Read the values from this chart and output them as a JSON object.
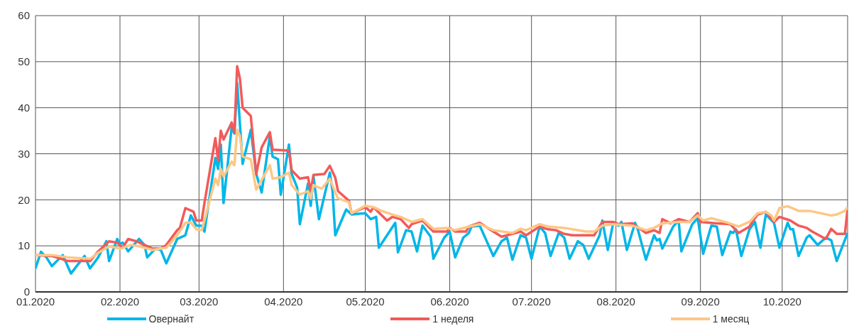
{
  "chart_data": {
    "type": "line",
    "xlim": [
      "2020-01-01",
      "2020-10-25"
    ],
    "ylim": [
      0,
      60
    ],
    "yticks": [
      0,
      10,
      20,
      30,
      40,
      50,
      60
    ],
    "xticks": [
      {
        "value": "2020-01-01",
        "label": "01.2020"
      },
      {
        "value": "2020-02-01",
        "label": "02.2020"
      },
      {
        "value": "2020-03-01",
        "label": "03.2020"
      },
      {
        "value": "2020-04-01",
        "label": "04.2020"
      },
      {
        "value": "2020-05-01",
        "label": "05.2020"
      },
      {
        "value": "2020-06-01",
        "label": "06.2020"
      },
      {
        "value": "2020-07-01",
        "label": "07.2020"
      },
      {
        "value": "2020-08-01",
        "label": "08.2020"
      },
      {
        "value": "2020-09-01",
        "label": "09.2020"
      },
      {
        "value": "2020-10-01",
        "label": "10.2020"
      }
    ],
    "grid": true,
    "legend": "bottom",
    "marker": "none",
    "line_style": "solid",
    "series": [
      {
        "name": "Овернайт",
        "color": "#00b6e8",
        "x": [
          "2020-01-01",
          "2020-01-03",
          "2020-01-05",
          "2020-01-07",
          "2020-01-11",
          "2020-01-14",
          "2020-01-19",
          "2020-01-21",
          "2020-01-24",
          "2020-01-27",
          "2020-01-28",
          "2020-01-31",
          "2020-02-01",
          "2020-02-02",
          "2020-02-04",
          "2020-02-08",
          "2020-02-10",
          "2020-02-11",
          "2020-02-14",
          "2020-02-16",
          "2020-02-18",
          "2020-02-22",
          "2020-02-25",
          "2020-02-27",
          "2020-02-29",
          "2020-03-02",
          "2020-03-03",
          "2020-03-07",
          "2020-03-08",
          "2020-03-09",
          "2020-03-10",
          "2020-03-13",
          "2020-03-14",
          "2020-03-15",
          "2020-03-17",
          "2020-03-20",
          "2020-03-22",
          "2020-03-24",
          "2020-03-27",
          "2020-03-28",
          "2020-03-30",
          "2020-03-31",
          "2020-04-03",
          "2020-04-04",
          "2020-04-06",
          "2020-04-07",
          "2020-04-10",
          "2020-04-11",
          "2020-04-12",
          "2020-04-14",
          "2020-04-18",
          "2020-04-19",
          "2020-04-20",
          "2020-04-24",
          "2020-04-26",
          "2020-05-01",
          "2020-05-03",
          "2020-05-05",
          "2020-05-06",
          "2020-05-12",
          "2020-05-13",
          "2020-05-16",
          "2020-05-18",
          "2020-05-20",
          "2020-05-22",
          "2020-05-25",
          "2020-05-26",
          "2020-05-30",
          "2020-06-01",
          "2020-06-03",
          "2020-06-06",
          "2020-06-08",
          "2020-06-09",
          "2020-06-12",
          "2020-06-17",
          "2020-06-20",
          "2020-06-22",
          "2020-06-24",
          "2020-06-27",
          "2020-06-29",
          "2020-07-01",
          "2020-07-04",
          "2020-07-06",
          "2020-07-08",
          "2020-07-11",
          "2020-07-13",
          "2020-07-15",
          "2020-07-18",
          "2020-07-20",
          "2020-07-22",
          "2020-07-26",
          "2020-07-27",
          "2020-07-29",
          "2020-07-31",
          "2020-08-02",
          "2020-08-03",
          "2020-08-05",
          "2020-08-08",
          "2020-08-09",
          "2020-08-12",
          "2020-08-15",
          "2020-08-16",
          "2020-08-17",
          "2020-08-18",
          "2020-08-22",
          "2020-08-24",
          "2020-08-25",
          "2020-08-29",
          "2020-08-31",
          "2020-09-02",
          "2020-09-05",
          "2020-09-07",
          "2020-09-09",
          "2020-09-12",
          "2020-09-13",
          "2020-09-14",
          "2020-09-16",
          "2020-09-19",
          "2020-09-21",
          "2020-09-23",
          "2020-09-25",
          "2020-09-28",
          "2020-09-30",
          "2020-10-03",
          "2020-10-04",
          "2020-10-05",
          "2020-10-07",
          "2020-10-10",
          "2020-10-11",
          "2020-10-14",
          "2020-10-17",
          "2020-10-19",
          "2020-10-21",
          "2020-10-25"
        ],
        "values": [
          5.1,
          8.7,
          7.5,
          5.6,
          8,
          4,
          7.8,
          5.1,
          7.5,
          11,
          6.7,
          11.5,
          10.4,
          10.7,
          8.8,
          11.5,
          10.2,
          7.5,
          9.4,
          9.1,
          6.2,
          11.5,
          12.3,
          16.6,
          14.4,
          14.4,
          13.1,
          29.1,
          26.7,
          32,
          19.3,
          35.8,
          34.4,
          45.4,
          27.8,
          35.2,
          25.6,
          21.6,
          33.9,
          29.4,
          28.8,
          21.1,
          32,
          25.6,
          22.7,
          14.7,
          23.5,
          18.7,
          25.1,
          15.8,
          25.9,
          21.9,
          12.3,
          17.9,
          16.8,
          17.1,
          15.8,
          16.3,
          9.6,
          15,
          8.6,
          13.4,
          13.1,
          8.8,
          14.4,
          12,
          7.2,
          11.8,
          13.1,
          7.5,
          11.8,
          12.8,
          14.2,
          14.4,
          7.8,
          11,
          11.8,
          7,
          12.3,
          11.8,
          7.2,
          14.2,
          12.8,
          7.8,
          12.8,
          11.8,
          7.2,
          11,
          10.2,
          7.2,
          12.3,
          15.5,
          9.1,
          15,
          14.4,
          15.2,
          9.1,
          15,
          13.6,
          7,
          12.3,
          11.2,
          11.5,
          9.4,
          14.2,
          15.5,
          8.8,
          14.7,
          16,
          8.3,
          14.4,
          14.2,
          8,
          13.1,
          12.8,
          13.6,
          7.8,
          13.6,
          15.2,
          9.6,
          16.8,
          15,
          9.6,
          15,
          13.6,
          13.6,
          7.8,
          11.8,
          12.3,
          10.2,
          11.8,
          11.2,
          6.7,
          12.8
        ]
      },
      {
        "name": "1 неделя",
        "color": "#f25a5a",
        "x": [
          "2020-01-01",
          "2020-01-07",
          "2020-01-13",
          "2020-01-21",
          "2020-01-24",
          "2020-01-28",
          "2020-01-31",
          "2020-02-02",
          "2020-02-04",
          "2020-02-07",
          "2020-02-10",
          "2020-02-13",
          "2020-02-16",
          "2020-02-18",
          "2020-02-22",
          "2020-02-23",
          "2020-02-25",
          "2020-02-28",
          "2020-02-29",
          "2020-03-02",
          "2020-03-03",
          "2020-03-07",
          "2020-03-08",
          "2020-03-09",
          "2020-03-10",
          "2020-03-13",
          "2020-03-14",
          "2020-03-15",
          "2020-03-16",
          "2020-03-17",
          "2020-03-20",
          "2020-03-22",
          "2020-03-24",
          "2020-03-27",
          "2020-03-28",
          "2020-04-03",
          "2020-04-04",
          "2020-04-07",
          "2020-04-10",
          "2020-04-11",
          "2020-04-12",
          "2020-04-16",
          "2020-04-18",
          "2020-04-20",
          "2020-04-21",
          "2020-04-25",
          "2020-04-26",
          "2020-05-01",
          "2020-05-03",
          "2020-05-04",
          "2020-05-09",
          "2020-05-11",
          "2020-05-14",
          "2020-05-17",
          "2020-05-18",
          "2020-05-22",
          "2020-05-26",
          "2020-05-31",
          "2020-06-01",
          "2020-06-03",
          "2020-06-07",
          "2020-06-08",
          "2020-06-12",
          "2020-06-17",
          "2020-06-20",
          "2020-06-24",
          "2020-06-27",
          "2020-06-29",
          "2020-07-04",
          "2020-07-07",
          "2020-07-10",
          "2020-07-13",
          "2020-07-16",
          "2020-07-21",
          "2020-07-24",
          "2020-07-27",
          "2020-07-31",
          "2020-08-02",
          "2020-08-07",
          "2020-08-12",
          "2020-08-15",
          "2020-08-17",
          "2020-08-18",
          "2020-08-21",
          "2020-08-24",
          "2020-08-28",
          "2020-08-31",
          "2020-09-01",
          "2020-09-07",
          "2020-09-12",
          "2020-09-15",
          "2020-09-19",
          "2020-09-20",
          "2020-09-22",
          "2020-09-25",
          "2020-09-28",
          "2020-09-30",
          "2020-10-04",
          "2020-10-07",
          "2020-10-10",
          "2020-10-12",
          "2020-10-17",
          "2020-10-19",
          "2020-10-21",
          "2020-10-24",
          "2020-10-25"
        ],
        "values": [
          8,
          7.8,
          6.7,
          6.7,
          8.8,
          11,
          10.7,
          9.6,
          11.5,
          11,
          10.2,
          9.4,
          9.4,
          10.2,
          13.4,
          13.9,
          18.2,
          17.4,
          15.5,
          15.5,
          19.3,
          33.4,
          28.6,
          35,
          33.1,
          36.8,
          34.7,
          49,
          46.4,
          40,
          38.2,
          25.6,
          31.4,
          34.7,
          30.9,
          30.7,
          26.4,
          24.6,
          24.9,
          21.9,
          25.4,
          25.6,
          27.4,
          24.8,
          21.9,
          19.8,
          17.1,
          18.4,
          17.4,
          18.4,
          15.5,
          16.3,
          15.8,
          13.9,
          14.7,
          15.5,
          13.1,
          13.1,
          13.9,
          13.1,
          13.1,
          14.2,
          15,
          13.1,
          12,
          12.6,
          13.1,
          12.3,
          14.2,
          13.6,
          13.4,
          12.6,
          12.3,
          12.3,
          12.3,
          15.2,
          15.2,
          14.7,
          14.9,
          12.8,
          13.4,
          12.8,
          15.8,
          14.9,
          15.8,
          15.2,
          17.1,
          15.2,
          14.9,
          14.7,
          12.8,
          14.2,
          15.2,
          16.8,
          17.4,
          15.2,
          16.3,
          15.5,
          14.4,
          13.9,
          13.1,
          11.5,
          13.7,
          12.6,
          12.6,
          18
        ]
      },
      {
        "name": "1 месяц",
        "color": "#fdc785",
        "x": [
          "2020-01-01",
          "2020-01-07",
          "2020-01-13",
          "2020-01-21",
          "2020-01-24",
          "2020-01-28",
          "2020-02-01",
          "2020-02-05",
          "2020-02-08",
          "2020-02-13",
          "2020-02-18",
          "2020-02-22",
          "2020-02-25",
          "2020-02-27",
          "2020-02-29",
          "2020-03-02",
          "2020-03-03",
          "2020-03-07",
          "2020-03-08",
          "2020-03-09",
          "2020-03-10",
          "2020-03-13",
          "2020-03-14",
          "2020-03-15",
          "2020-03-16",
          "2020-03-17",
          "2020-03-20",
          "2020-03-22",
          "2020-03-24",
          "2020-03-27",
          "2020-03-28",
          "2020-03-31",
          "2020-04-03",
          "2020-04-04",
          "2020-04-07",
          "2020-04-10",
          "2020-04-11",
          "2020-04-12",
          "2020-04-15",
          "2020-04-18",
          "2020-04-20",
          "2020-04-21",
          "2020-04-25",
          "2020-04-26",
          "2020-05-01",
          "2020-05-04",
          "2020-05-07",
          "2020-05-11",
          "2020-05-14",
          "2020-05-18",
          "2020-05-22",
          "2020-05-26",
          "2020-05-31",
          "2020-06-03",
          "2020-06-08",
          "2020-06-12",
          "2020-06-17",
          "2020-06-24",
          "2020-06-27",
          "2020-06-29",
          "2020-07-04",
          "2020-07-07",
          "2020-07-13",
          "2020-07-21",
          "2020-07-24",
          "2020-07-27",
          "2020-07-31",
          "2020-08-07",
          "2020-08-12",
          "2020-08-15",
          "2020-08-18",
          "2020-08-24",
          "2020-08-28",
          "2020-08-31",
          "2020-09-02",
          "2020-09-05",
          "2020-09-10",
          "2020-09-15",
          "2020-09-19",
          "2020-09-22",
          "2020-09-25",
          "2020-09-27",
          "2020-09-28",
          "2020-09-30",
          "2020-10-03",
          "2020-10-07",
          "2020-10-11",
          "2020-10-15",
          "2020-10-19",
          "2020-10-21",
          "2020-10-24",
          "2020-10-25"
        ],
        "values": [
          8,
          8,
          7.5,
          7.2,
          8.5,
          9.9,
          9.4,
          10.2,
          9.9,
          9.1,
          9.6,
          12.3,
          15,
          15.1,
          13.6,
          13.4,
          15.5,
          24.6,
          23.2,
          26.7,
          25.1,
          28.3,
          27.5,
          35.2,
          33.9,
          29.4,
          28.8,
          22.2,
          24.3,
          27.5,
          24.6,
          24.9,
          25.9,
          23.2,
          21.1,
          21.9,
          20.3,
          23.2,
          22.4,
          24.6,
          21.6,
          20.3,
          19.5,
          17.1,
          18.7,
          18.4,
          17.6,
          16.8,
          16.3,
          15.2,
          15.8,
          13.7,
          13.9,
          13.4,
          14.2,
          14.7,
          13.4,
          12.8,
          13.7,
          13.4,
          14.7,
          14.2,
          13.9,
          13.1,
          13.1,
          14.4,
          14.7,
          14.4,
          13.4,
          13.9,
          14.9,
          15.2,
          15.2,
          16.6,
          15.5,
          16,
          15.2,
          14.2,
          15.2,
          17.1,
          17.4,
          16.6,
          15.5,
          18.2,
          18.6,
          17.6,
          17.6,
          17.1,
          16.6,
          16.8,
          17.6,
          18.4
        ]
      }
    ]
  }
}
